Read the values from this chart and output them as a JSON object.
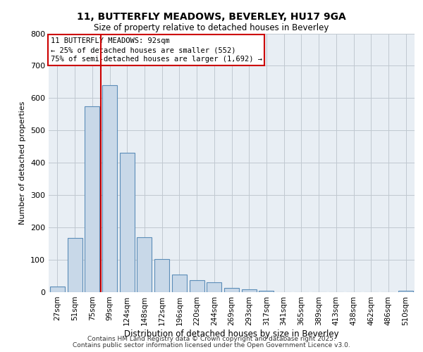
{
  "title": "11, BUTTERFLY MEADOWS, BEVERLEY, HU17 9GA",
  "subtitle": "Size of property relative to detached houses in Beverley",
  "xlabel": "Distribution of detached houses by size in Beverley",
  "ylabel": "Number of detached properties",
  "bar_labels": [
    "27sqm",
    "51sqm",
    "75sqm",
    "99sqm",
    "124sqm",
    "148sqm",
    "172sqm",
    "196sqm",
    "220sqm",
    "244sqm",
    "269sqm",
    "293sqm",
    "317sqm",
    "341sqm",
    "365sqm",
    "389sqm",
    "413sqm",
    "438sqm",
    "462sqm",
    "486sqm",
    "510sqm"
  ],
  "bar_values": [
    18,
    168,
    575,
    640,
    430,
    170,
    103,
    55,
    38,
    30,
    13,
    8,
    5,
    0,
    0,
    0,
    0,
    0,
    0,
    0,
    5
  ],
  "bar_color": "#c8d8e8",
  "bar_edge_color": "#5b8db8",
  "vline_pos": 2.5,
  "vline_color": "#cc0000",
  "annotation_text": "11 BUTTERFLY MEADOWS: 92sqm\n← 25% of detached houses are smaller (552)\n75% of semi-detached houses are larger (1,692) →",
  "annotation_box_color": "#ffffff",
  "annotation_box_edge_color": "#cc0000",
  "ylim": [
    0,
    800
  ],
  "yticks": [
    0,
    100,
    200,
    300,
    400,
    500,
    600,
    700,
    800
  ],
  "grid_color": "#c0c8d0",
  "background_color": "#e8eef4",
  "footnote1": "Contains HM Land Registry data © Crown copyright and database right 2025.",
  "footnote2": "Contains public sector information licensed under the Open Government Licence v3.0."
}
